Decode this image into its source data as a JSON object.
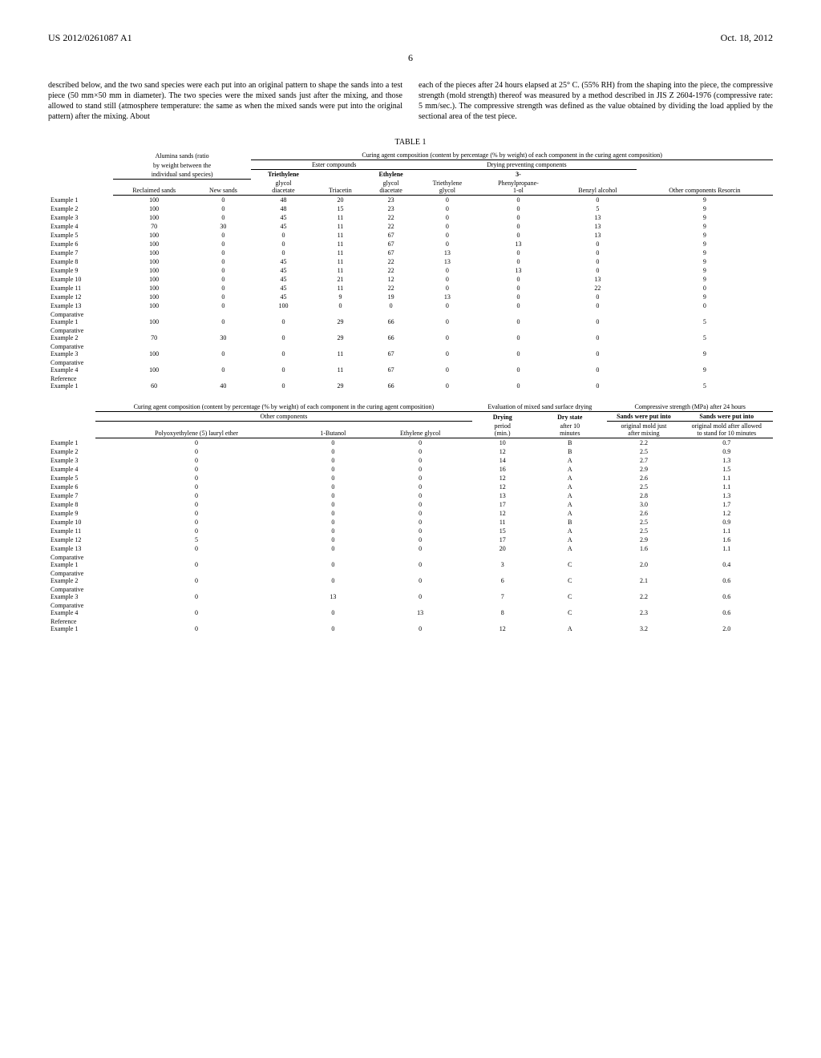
{
  "header": {
    "left": "US 2012/0261087 A1",
    "right": "Oct. 18, 2012"
  },
  "page_number": "6",
  "paragraph": {
    "left": "described below, and the two sand species were each put into an original pattern to shape the sands into a test piece (50 mm×50 mm in diameter). The two species were the mixed sands just after the mixing, and those allowed to stand still (atmosphere temperature: the same as when the mixed sands were put into the original pattern) after the mixing. About",
    "right": "each of the pieces after 24 hours elapsed at 25° C. (55% RH) from the shaping into the piece, the compressive strength (mold strength) thereof was measured by a method described in JIS Z 2604-1976 (compressive rate: 5 mm/sec.). The compressive strength was defined as the value obtained by dividing the load applied by the sectional area of the test piece."
  },
  "table1": {
    "title": "TABLE 1",
    "group_headers": {
      "alumina": "Alumina sands (ratio",
      "alumina2": "by weight between the",
      "alumina3": "individual sand species)",
      "curing": "Curing agent composition (content by percentage (% by weight) of each component in the curing agent composition)",
      "ester": "Ester compounds",
      "drying_prev": "Drying preventing components"
    },
    "columns": {
      "reclaimed": "Reclaimed sands",
      "new": "New sands",
      "triethylene_glycol_diacetate": "Triethylene glycol diacetate",
      "triacetin": "Triacetin",
      "ethylene_glycol_diacetate": "Ethylene glycol diacetate",
      "triethylene_glycol": "Triethylene glycol",
      "phenylpropane": "3-Phenylpropane-1-ol",
      "benzyl": "Benzyl alcohol",
      "resorcin": "Other components Resorcin"
    },
    "rows": [
      {
        "label": "Example 1",
        "vals": [
          "100",
          "0",
          "48",
          "20",
          "23",
          "0",
          "0",
          "0",
          "9"
        ]
      },
      {
        "label": "Example 2",
        "vals": [
          "100",
          "0",
          "48",
          "15",
          "23",
          "0",
          "0",
          "5",
          "9"
        ]
      },
      {
        "label": "Example 3",
        "vals": [
          "100",
          "0",
          "45",
          "11",
          "22",
          "0",
          "0",
          "13",
          "9"
        ]
      },
      {
        "label": "Example 4",
        "vals": [
          "70",
          "30",
          "45",
          "11",
          "22",
          "0",
          "0",
          "13",
          "9"
        ]
      },
      {
        "label": "Example 5",
        "vals": [
          "100",
          "0",
          "0",
          "11",
          "67",
          "0",
          "0",
          "13",
          "9"
        ]
      },
      {
        "label": "Example 6",
        "vals": [
          "100",
          "0",
          "0",
          "11",
          "67",
          "0",
          "13",
          "0",
          "9"
        ]
      },
      {
        "label": "Example 7",
        "vals": [
          "100",
          "0",
          "0",
          "11",
          "67",
          "13",
          "0",
          "0",
          "9"
        ]
      },
      {
        "label": "Example 8",
        "vals": [
          "100",
          "0",
          "45",
          "11",
          "22",
          "13",
          "0",
          "0",
          "9"
        ]
      },
      {
        "label": "Example 9",
        "vals": [
          "100",
          "0",
          "45",
          "11",
          "22",
          "0",
          "13",
          "0",
          "9"
        ]
      },
      {
        "label": "Example 10",
        "vals": [
          "100",
          "0",
          "45",
          "21",
          "12",
          "0",
          "0",
          "13",
          "9"
        ]
      },
      {
        "label": "Example 11",
        "vals": [
          "100",
          "0",
          "45",
          "11",
          "22",
          "0",
          "0",
          "22",
          "0"
        ]
      },
      {
        "label": "Example 12",
        "vals": [
          "100",
          "0",
          "45",
          "9",
          "19",
          "13",
          "0",
          "0",
          "9"
        ]
      },
      {
        "label": "Example 13",
        "vals": [
          "100",
          "0",
          "100",
          "0",
          "0",
          "0",
          "0",
          "0",
          "0"
        ]
      },
      {
        "label": "Comparative Example 1",
        "vals": [
          "100",
          "0",
          "0",
          "29",
          "66",
          "0",
          "0",
          "0",
          "5"
        ]
      },
      {
        "label": "Comparative Example 2",
        "vals": [
          "70",
          "30",
          "0",
          "29",
          "66",
          "0",
          "0",
          "0",
          "5"
        ]
      },
      {
        "label": "Comparative Example 3",
        "vals": [
          "100",
          "0",
          "0",
          "11",
          "67",
          "0",
          "0",
          "0",
          "9"
        ]
      },
      {
        "label": "Comparative Example 4",
        "vals": [
          "100",
          "0",
          "0",
          "11",
          "67",
          "0",
          "0",
          "0",
          "9"
        ]
      },
      {
        "label": "Reference Example 1",
        "vals": [
          "60",
          "40",
          "0",
          "29",
          "66",
          "0",
          "0",
          "0",
          "5"
        ]
      }
    ]
  },
  "table2": {
    "group_headers": {
      "curing": "Curing agent composition (content by percentage (% by weight) of each component in the curing agent composition)",
      "other": "Other components",
      "eval": "Evaluation of mixed sand surface drying",
      "comp": "Compressive strength (MPa) after 24 hours"
    },
    "columns": {
      "polyoxy": "Polyoxyethylene (5) lauryl ether",
      "butanol": "1-Butanol",
      "ethylene_glycol": "Ethylene glycol",
      "drying_period": "Drying period (min.)",
      "dry_state": "Dry state after 10 minutes",
      "sands_put_after_mixing": "Sands were put into original mold just after mixing",
      "sands_put_after_stand": "Sands were put into original mold after allowed to stand for 10 minutes"
    },
    "rows": [
      {
        "label": "Example 1",
        "vals": [
          "0",
          "0",
          "0",
          "10",
          "B",
          "2.2",
          "0.7"
        ]
      },
      {
        "label": "Example 2",
        "vals": [
          "0",
          "0",
          "0",
          "12",
          "B",
          "2.5",
          "0.9"
        ]
      },
      {
        "label": "Example 3",
        "vals": [
          "0",
          "0",
          "0",
          "14",
          "A",
          "2.7",
          "1.3"
        ]
      },
      {
        "label": "Example 4",
        "vals": [
          "0",
          "0",
          "0",
          "16",
          "A",
          "2.9",
          "1.5"
        ]
      },
      {
        "label": "Example 5",
        "vals": [
          "0",
          "0",
          "0",
          "12",
          "A",
          "2.6",
          "1.1"
        ]
      },
      {
        "label": "Example 6",
        "vals": [
          "0",
          "0",
          "0",
          "12",
          "A",
          "2.5",
          "1.1"
        ]
      },
      {
        "label": "Example 7",
        "vals": [
          "0",
          "0",
          "0",
          "13",
          "A",
          "2.8",
          "1.3"
        ]
      },
      {
        "label": "Example 8",
        "vals": [
          "0",
          "0",
          "0",
          "17",
          "A",
          "3.0",
          "1.7"
        ]
      },
      {
        "label": "Example 9",
        "vals": [
          "0",
          "0",
          "0",
          "12",
          "A",
          "2.6",
          "1.2"
        ]
      },
      {
        "label": "Example 10",
        "vals": [
          "0",
          "0",
          "0",
          "11",
          "B",
          "2.5",
          "0.9"
        ]
      },
      {
        "label": "Example 11",
        "vals": [
          "0",
          "0",
          "0",
          "15",
          "A",
          "2.5",
          "1.1"
        ]
      },
      {
        "label": "Example 12",
        "vals": [
          "5",
          "0",
          "0",
          "17",
          "A",
          "2.9",
          "1.6"
        ]
      },
      {
        "label": "Example 13",
        "vals": [
          "0",
          "0",
          "0",
          "20",
          "A",
          "1.6",
          "1.1"
        ]
      },
      {
        "label": "Comparative Example 1",
        "vals": [
          "0",
          "0",
          "0",
          "3",
          "C",
          "2.0",
          "0.4"
        ]
      },
      {
        "label": "Comparative Example 2",
        "vals": [
          "0",
          "0",
          "0",
          "6",
          "C",
          "2.1",
          "0.6"
        ]
      },
      {
        "label": "Comparative Example 3",
        "vals": [
          "0",
          "13",
          "0",
          "7",
          "C",
          "2.2",
          "0.6"
        ]
      },
      {
        "label": "Comparative Example 4",
        "vals": [
          "0",
          "0",
          "13",
          "8",
          "C",
          "2.3",
          "0.6"
        ]
      },
      {
        "label": "Reference Example 1",
        "vals": [
          "0",
          "0",
          "0",
          "12",
          "A",
          "3.2",
          "2.0"
        ]
      }
    ]
  }
}
